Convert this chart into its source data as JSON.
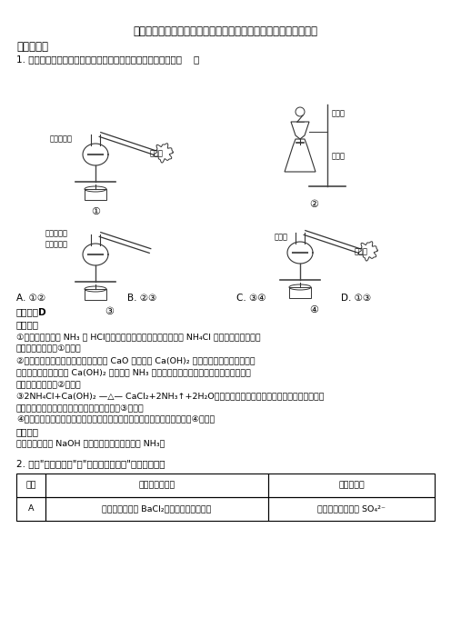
{
  "title": "贵州省遵义市航天高级中学高一第二学期第二次质量检测化学试题",
  "section1": "一、选择题",
  "q1_text": "1. 下面是实验室制取氨气的装置和选用的试剂，其中错误的是（    ）",
  "q1_options": [
    "A. ①②",
    "B. ②③",
    "C. ③④",
    "D. ①③"
  ],
  "answer_label": "【答案】D",
  "explanation_label": "【详解】",
  "explanation_lines": [
    "①氯化铵分解产生 NH₃ 和 HCl，气体在试管口降温后又化合生成 NH₄Cl 甚至会堵塞，试管发",
    "生危险，所以方案①错误；",
    "②浓氨水遇到氧化钙后，溶液中的水与 CaO 反应生成 Ca(OH)₂ 而消耗，反应同时放热使混",
    "合物温度升高，得到的 Ca(OH)₂ 可以降低 NH₃ 在水中的溶解度，这些都会促使氨水挥发生",
    "成氨气，因此方案②正确；",
    "③2NH₄Cl+Ca(OH)₂ —△— CaCl₂+2NH₃↑+2H₂O，但是制备装置的试管口要略向下倾斜，防止水",
    "蒸气冷凝回流到试管中使试管炸裂，因此方案③错误；",
    "④浓氨水受热分解生成氨气，通过碱石灰吸收水蒸气后可以得到氨气，方案④正确。"
  ],
  "point_label": "【点睛】",
  "point_text": "与之相似，利用 NaOH 固体或碱石灰也可以制备 NH₃。",
  "q2_text": "2. 下列\"推理或结论\"与\"实验操作及现象\"相符的一组是",
  "table_header": [
    "选项",
    "实验操作及现象",
    "推理或结论"
  ],
  "table_row_a": [
    "A",
    "向某溶液中加入 BaCl₂溶液，生成白色沉淀",
    "该溶液中一定含有 SO₄²⁻"
  ],
  "bg_color": "#ffffff",
  "text_color": "#000000"
}
